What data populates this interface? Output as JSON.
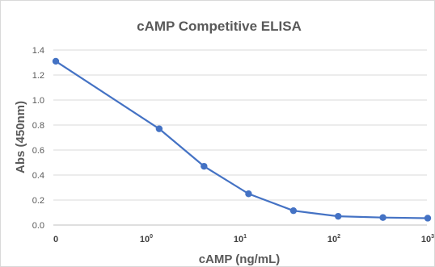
{
  "chart_data": {
    "type": "line",
    "title": "cAMP Competitive ELISA",
    "xlabel": "cAMP (ng/mL)",
    "ylabel": "Abs (450nm)",
    "x_scale": "log",
    "x_tick_labels": [
      {
        "base": "0",
        "exp": ""
      },
      {
        "base": "10",
        "exp": "0"
      },
      {
        "base": "10",
        "exp": "1"
      },
      {
        "base": "10",
        "exp": "2"
      },
      {
        "base": "10",
        "exp": "3"
      }
    ],
    "y_tick_labels": [
      "0.0",
      "0.2",
      "0.4",
      "0.6",
      "0.8",
      "1.0",
      "1.2",
      "1.4"
    ],
    "ylim": [
      0,
      1.4
    ],
    "grid": true,
    "series_color": "#4472c4",
    "series": [
      {
        "x": [
          0,
          1.37,
          4.12,
          12.3,
          37,
          111,
          333,
          1000
        ],
        "values": [
          1.31,
          0.77,
          0.47,
          0.25,
          0.115,
          0.07,
          0.06,
          0.055
        ]
      }
    ]
  }
}
